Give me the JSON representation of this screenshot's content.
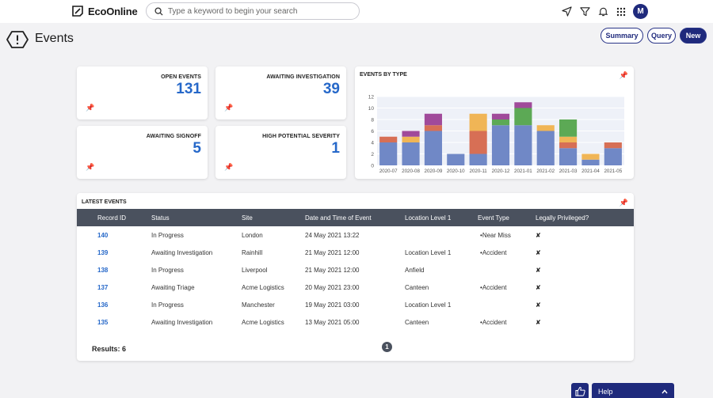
{
  "header": {
    "logo_text": "EcoOnline",
    "search_placeholder": "Type a keyword to begin your search",
    "avatar_initial": "M"
  },
  "page": {
    "title": "Events",
    "buttons": {
      "summary": "Summary",
      "query": "Query",
      "new": "New"
    }
  },
  "kpis": [
    {
      "label": "OPEN EVENTS",
      "value": "131"
    },
    {
      "label": "AWAITING INVESTIGATION",
      "value": "39"
    },
    {
      "label": "AWAITING SIGNOFF",
      "value": "5"
    },
    {
      "label": "HIGH POTENTIAL SEVERITY",
      "value": "1"
    }
  ],
  "chart_card": {
    "title": "EVENTS BY TYPE"
  },
  "chart_data": {
    "type": "bar",
    "stacked": true,
    "title": "EVENTS BY TYPE",
    "categories": [
      "2020-07",
      "2020-08",
      "2020-09",
      "2020-10",
      "2020-11",
      "2020-12",
      "2021-01",
      "2021-02",
      "2021-03",
      "2021-04",
      "2021-05"
    ],
    "ylim": [
      0,
      12
    ],
    "yticks": [
      0,
      2,
      4,
      6,
      8,
      10,
      12
    ],
    "grid": true,
    "series": [
      {
        "color": "#7088c6",
        "values": [
          4,
          4,
          6,
          2,
          2,
          7,
          7,
          6,
          3,
          1,
          3
        ]
      },
      {
        "color": "#d76f55",
        "values": [
          1,
          0,
          1,
          0,
          4,
          0,
          0,
          0,
          1,
          0,
          1
        ]
      },
      {
        "color": "#f0b556",
        "values": [
          0,
          1,
          0,
          0,
          3,
          0,
          0,
          1,
          1,
          1,
          0
        ]
      },
      {
        "color": "#5ca955",
        "values": [
          0,
          0,
          0,
          0,
          0,
          1,
          3,
          0,
          3,
          0,
          0
        ]
      },
      {
        "color": "#a04a9a",
        "values": [
          0,
          1,
          2,
          0,
          0,
          1,
          1,
          0,
          0,
          0,
          0
        ]
      }
    ]
  },
  "table": {
    "title": "LATEST EVENTS",
    "columns": [
      "Record ID",
      "Status",
      "Site",
      "Date and Time of Event",
      "Location Level 1",
      "Event Type",
      "Legally Privileged?"
    ],
    "rows": [
      {
        "id": "140",
        "status": "In Progress",
        "site": "London",
        "datetime": "24 May 2021 13:22",
        "location": "",
        "event_type": "Near Miss",
        "privileged": "✘"
      },
      {
        "id": "139",
        "status": "Awaiting Investigation",
        "site": "Rainhill",
        "datetime": "21 May 2021 12:00",
        "location": "Location Level 1",
        "event_type": "Accident",
        "privileged": "✘"
      },
      {
        "id": "138",
        "status": "In Progress",
        "site": "Liverpool",
        "datetime": "21 May 2021 12:00",
        "location": "Anfield",
        "event_type": "",
        "privileged": "✘"
      },
      {
        "id": "137",
        "status": "Awaiting Triage",
        "site": "Acme Logistics",
        "datetime": "20 May 2021 23:00",
        "location": "Canteen",
        "event_type": "Accident",
        "privileged": "✘"
      },
      {
        "id": "136",
        "status": "In Progress",
        "site": "Manchester",
        "datetime": "19 May 2021 03:00",
        "location": "Location Level 1",
        "event_type": "",
        "privileged": "✘"
      },
      {
        "id": "135",
        "status": "Awaiting Investigation",
        "site": "Acme Logistics",
        "datetime": "13 May 2021 05:00",
        "location": "Canteen",
        "event_type": "Accident",
        "privileged": "✘"
      }
    ],
    "results_label": "Results: 6",
    "page_number": "1"
  },
  "footer": {
    "help_label": "Help"
  },
  "colors": {
    "brand": "#1f2a7c",
    "accent": "#2668c9",
    "table_header": "#4a515e"
  }
}
